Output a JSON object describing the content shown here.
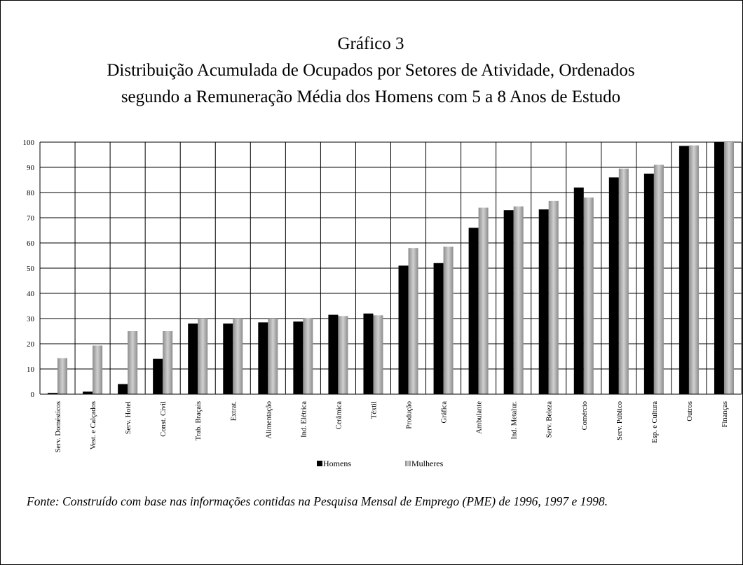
{
  "chart_data": {
    "type": "bar",
    "title": "Gráfico 3",
    "subtitle": [
      "Distribuição Acumulada de Ocupados por Setores de Atividade, Ordenados",
      "segundo a Remuneração Média dos Homens com 5 a 8 Anos de Estudo"
    ],
    "categories": [
      "Serv. Domésticos",
      "Vest. e Calçados",
      "Serv. Hotel",
      "Const. Civil",
      "Trab. Braçais",
      "Extrat.",
      "Alimentação",
      "Ind. Elétrica",
      "Cerâmica",
      "Têxtil",
      "Produção",
      "Gráfica",
      "Ambulante",
      "Ind. Metalur.",
      "Serv. Beleza",
      "Comércio",
      "Serv. Público",
      "Esp. e Cultura",
      "Outros",
      "Finanças"
    ],
    "series": [
      {
        "name": "Homens",
        "color": "#000000",
        "values": [
          0.5,
          1,
          4,
          14,
          28,
          28,
          28.5,
          28.8,
          31.5,
          32,
          51,
          52,
          66,
          73,
          73.3,
          82,
          86,
          87.5,
          98.5,
          100
        ]
      },
      {
        "name": "Mulheres",
        "color": "#8c8c8c",
        "values": [
          14.3,
          19.3,
          25,
          25,
          30,
          30,
          30,
          30.3,
          31,
          31.3,
          58,
          58.5,
          74,
          74.5,
          76.7,
          78,
          89.5,
          91,
          98.7,
          100
        ]
      }
    ],
    "ylim": [
      0,
      100
    ],
    "yticks": [
      0,
      10,
      20,
      30,
      40,
      50,
      60,
      70,
      80,
      90,
      100
    ],
    "grid": true,
    "legend": "bottom",
    "note": "Fonte: Construído com base nas informações contidas na Pesquisa Mensal de Emprego (PME) de 1996, 1997 e 1998."
  }
}
